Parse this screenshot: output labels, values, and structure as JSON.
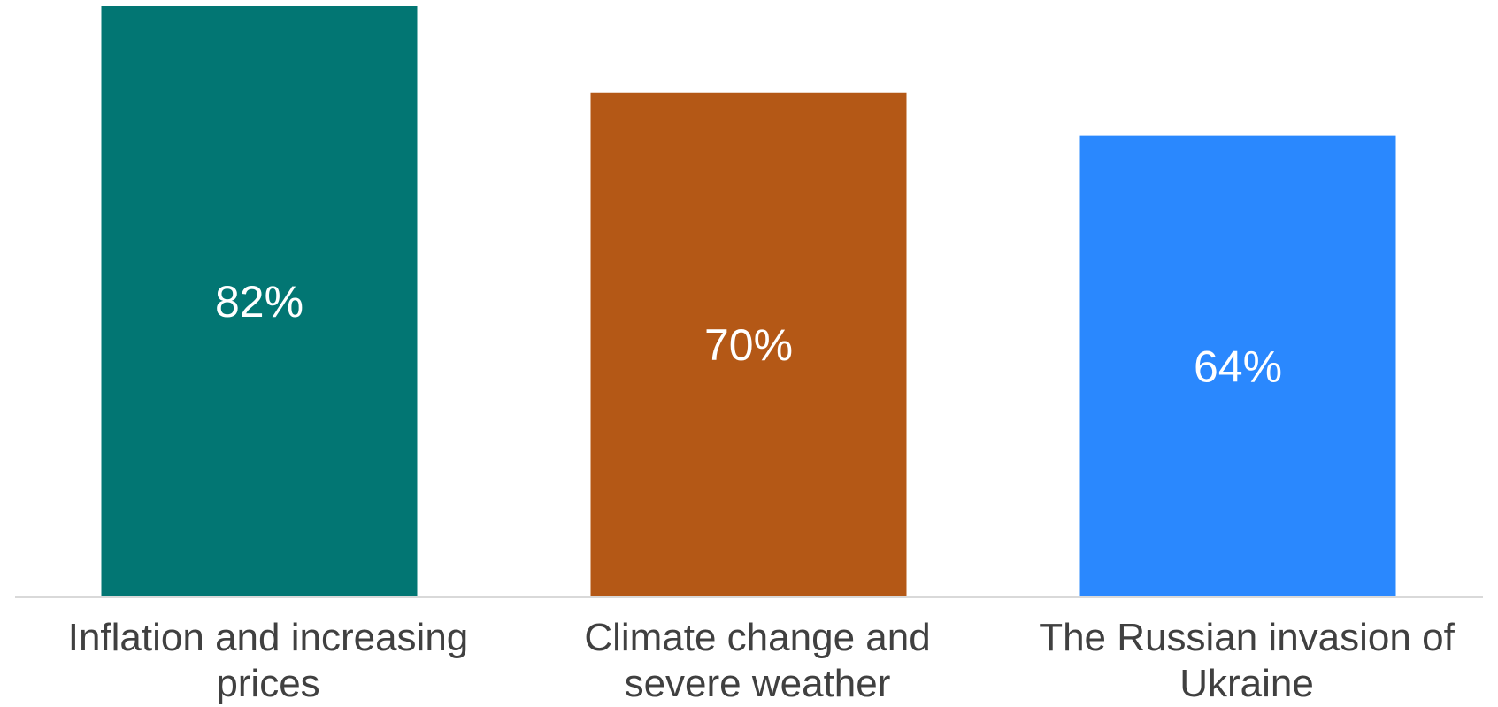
{
  "chart_data": {
    "type": "bar",
    "categories": [
      [
        "Inflation and increasing",
        "prices"
      ],
      [
        "Climate change and",
        "severe weather"
      ],
      [
        "The Russian invasion of",
        "Ukraine"
      ]
    ],
    "values": [
      82,
      70,
      64
    ],
    "value_labels": [
      "82%",
      "70%",
      "64%"
    ],
    "colors": [
      "#027673",
      "#b45816",
      "#2a88fe"
    ],
    "ylim": [
      0,
      82
    ],
    "grid": false,
    "legend": "none",
    "axis_line_color": "#d9d9d9",
    "value_label_color": "#ffffff",
    "category_label_color": "#404040"
  }
}
